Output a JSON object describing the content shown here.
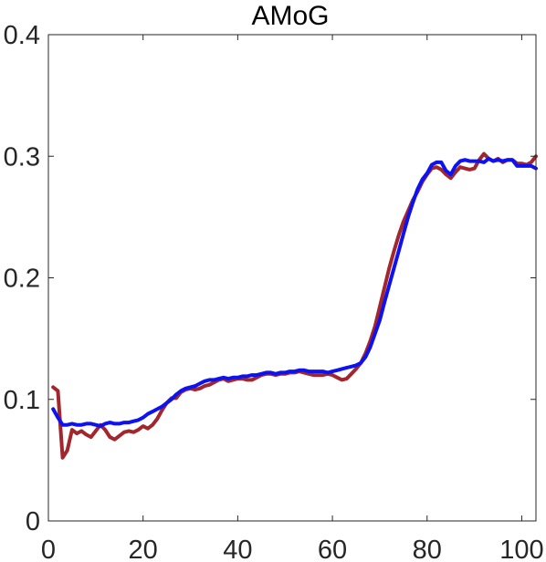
{
  "chart_data": {
    "type": "line",
    "title": "AMoG",
    "xlabel": "",
    "ylabel": "",
    "xlim": [
      0,
      103
    ],
    "ylim": [
      0,
      0.4
    ],
    "xticks": [
      0,
      20,
      40,
      60,
      80,
      100
    ],
    "yticks": [
      0,
      0.1,
      0.2,
      0.3,
      0.4
    ],
    "xtick_labels": [
      "0",
      "20",
      "40",
      "60",
      "80",
      "100"
    ],
    "ytick_labels": [
      "0",
      "0.1",
      "0.2",
      "0.3",
      "0.4"
    ],
    "grid": false,
    "legend": "none",
    "series": [
      {
        "color": "#a2262b",
        "x": [
          1,
          2,
          3,
          4,
          5,
          6,
          7,
          8,
          9,
          10,
          11,
          12,
          13,
          14,
          15,
          16,
          17,
          18,
          19,
          20,
          21,
          22,
          23,
          24,
          25,
          26,
          27,
          28,
          29,
          30,
          31,
          32,
          33,
          34,
          35,
          36,
          37,
          38,
          39,
          40,
          41,
          42,
          43,
          44,
          45,
          46,
          47,
          48,
          49,
          50,
          51,
          52,
          53,
          54,
          55,
          56,
          57,
          58,
          59,
          60,
          61,
          62,
          63,
          64,
          65,
          66,
          67,
          68,
          69,
          70,
          71,
          72,
          73,
          74,
          75,
          76,
          77,
          78,
          79,
          80,
          81,
          82,
          83,
          84,
          85,
          86,
          87,
          88,
          89,
          90,
          91,
          92,
          93,
          94,
          95,
          96,
          97,
          98,
          99,
          100,
          101,
          102,
          103
        ],
        "values": [
          0.11,
          0.107,
          0.052,
          0.058,
          0.075,
          0.072,
          0.074,
          0.071,
          0.069,
          0.074,
          0.079,
          0.075,
          0.069,
          0.067,
          0.07,
          0.073,
          0.074,
          0.073,
          0.075,
          0.078,
          0.076,
          0.079,
          0.084,
          0.091,
          0.097,
          0.101,
          0.101,
          0.106,
          0.108,
          0.109,
          0.108,
          0.109,
          0.111,
          0.112,
          0.114,
          0.116,
          0.117,
          0.115,
          0.116,
          0.117,
          0.117,
          0.116,
          0.116,
          0.118,
          0.12,
          0.121,
          0.121,
          0.12,
          0.121,
          0.121,
          0.122,
          0.122,
          0.123,
          0.122,
          0.121,
          0.12,
          0.12,
          0.12,
          0.121,
          0.12,
          0.118,
          0.116,
          0.117,
          0.121,
          0.125,
          0.13,
          0.138,
          0.148,
          0.16,
          0.176,
          0.192,
          0.208,
          0.222,
          0.235,
          0.246,
          0.255,
          0.264,
          0.271,
          0.279,
          0.285,
          0.29,
          0.291,
          0.289,
          0.285,
          0.282,
          0.287,
          0.291,
          0.29,
          0.289,
          0.29,
          0.297,
          0.302,
          0.298,
          0.296,
          0.298,
          0.295,
          0.297,
          0.297,
          0.294,
          0.294,
          0.293,
          0.295,
          0.3
        ]
      },
      {
        "color": "#0d13f0",
        "x": [
          1,
          2,
          3,
          4,
          5,
          6,
          7,
          8,
          9,
          10,
          11,
          12,
          13,
          14,
          15,
          16,
          17,
          18,
          19,
          20,
          21,
          22,
          23,
          24,
          25,
          26,
          27,
          28,
          29,
          30,
          31,
          32,
          33,
          34,
          35,
          36,
          37,
          38,
          39,
          40,
          41,
          42,
          43,
          44,
          45,
          46,
          47,
          48,
          49,
          50,
          51,
          52,
          53,
          54,
          55,
          56,
          57,
          58,
          59,
          60,
          61,
          62,
          63,
          64,
          65,
          66,
          67,
          68,
          69,
          70,
          71,
          72,
          73,
          74,
          75,
          76,
          77,
          78,
          79,
          80,
          81,
          82,
          83,
          84,
          85,
          86,
          87,
          88,
          89,
          90,
          91,
          92,
          93,
          94,
          95,
          96,
          97,
          98,
          99,
          100,
          101,
          102,
          103
        ],
        "values": [
          0.092,
          0.085,
          0.079,
          0.079,
          0.08,
          0.079,
          0.079,
          0.08,
          0.08,
          0.079,
          0.078,
          0.08,
          0.081,
          0.08,
          0.08,
          0.081,
          0.081,
          0.082,
          0.083,
          0.085,
          0.088,
          0.09,
          0.092,
          0.094,
          0.097,
          0.1,
          0.104,
          0.107,
          0.109,
          0.11,
          0.111,
          0.113,
          0.115,
          0.116,
          0.116,
          0.117,
          0.118,
          0.117,
          0.118,
          0.118,
          0.119,
          0.119,
          0.12,
          0.12,
          0.121,
          0.122,
          0.122,
          0.121,
          0.122,
          0.122,
          0.123,
          0.123,
          0.124,
          0.124,
          0.123,
          0.123,
          0.123,
          0.123,
          0.122,
          0.123,
          0.124,
          0.125,
          0.126,
          0.127,
          0.128,
          0.13,
          0.135,
          0.143,
          0.154,
          0.165,
          0.18,
          0.194,
          0.208,
          0.222,
          0.236,
          0.25,
          0.262,
          0.273,
          0.281,
          0.286,
          0.293,
          0.295,
          0.295,
          0.288,
          0.285,
          0.292,
          0.296,
          0.297,
          0.296,
          0.296,
          0.296,
          0.295,
          0.298,
          0.296,
          0.297,
          0.296,
          0.297,
          0.297,
          0.292,
          0.292,
          0.292,
          0.292,
          0.29
        ]
      }
    ]
  }
}
